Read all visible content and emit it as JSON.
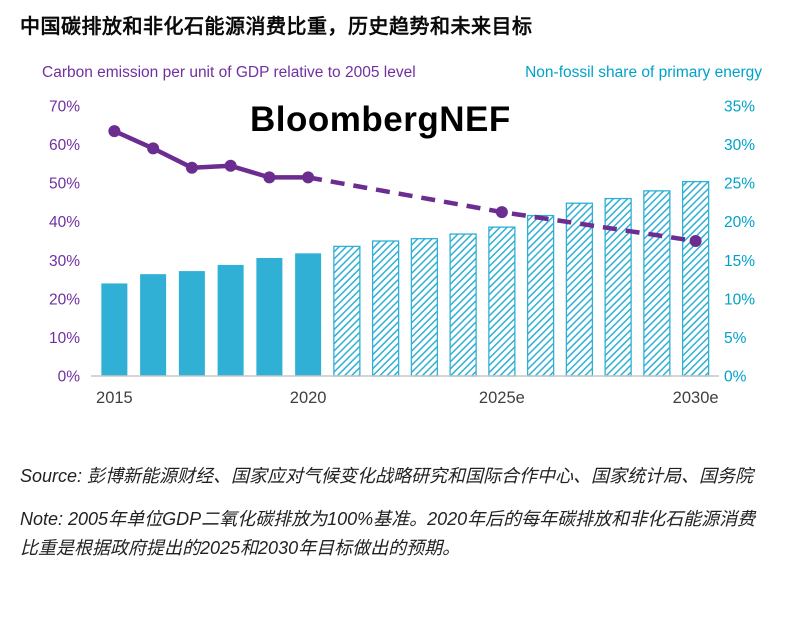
{
  "page": {
    "title": "中国碳排放和非化石能源消费比重，历史趋势和未来目标",
    "watermark": "BloombergNEF",
    "source": "Source: 彭博新能源财经、国家应对气候变化战略研究和国际合作中心、国家统计局、国务院",
    "note": "Note: 2005年单位GDP二氧化碳排放为100%基准。2020年后的每年碳排放和非化石能源消费比重是根据政府提出的2025和2030年目标做出的预期。"
  },
  "chart_data": {
    "type": "bar+line",
    "left_axis": {
      "label": "Carbon emission per unit of GDP relative to 2005 level",
      "min": 0,
      "max": 70,
      "tick_labels": [
        "0%",
        "10%",
        "20%",
        "30%",
        "40%",
        "50%",
        "60%",
        "70%"
      ],
      "color": "#7030a0"
    },
    "right_axis": {
      "label": "Non-fossil share of primary energy",
      "min": 0,
      "max": 35,
      "tick_labels": [
        "0%",
        "5%",
        "10%",
        "15%",
        "20%",
        "25%",
        "30%",
        "35%"
      ],
      "color": "#00a2c9"
    },
    "x_axis": {
      "tick_labels": [
        "2015",
        "2020",
        "2025e",
        "2030e"
      ],
      "tick_years": [
        2015,
        2020,
        2025,
        2030
      ],
      "color": "#404040"
    },
    "bars": {
      "name": "Non-fossil share of primary energy (%, right axis)",
      "color": "#2fb0d4",
      "years": [
        2015,
        2016,
        2017,
        2018,
        2019,
        2020,
        2021,
        2022,
        2023,
        2024,
        2025,
        2026,
        2027,
        2028,
        2029,
        2030
      ],
      "values": [
        12.0,
        13.2,
        13.6,
        14.4,
        15.3,
        15.9,
        16.8,
        17.5,
        17.8,
        18.4,
        19.3,
        20.8,
        22.4,
        23.0,
        24.0,
        25.2
      ],
      "forecast_start_year": 2021
    },
    "line": {
      "name": "Carbon emission per unit of GDP relative to 2005 level (%, left axis)",
      "color": "#6b2d90",
      "solid": {
        "years": [
          2015,
          2016,
          2017,
          2018,
          2019,
          2020
        ],
        "values": [
          63.5,
          59.0,
          54.0,
          54.5,
          51.5,
          51.5
        ]
      },
      "dashed": {
        "years": [
          2020,
          2025,
          2030
        ],
        "values": [
          51.5,
          42.5,
          35.0
        ]
      },
      "dashed_marker_years": [
        2025,
        2030
      ]
    },
    "grid": "off",
    "legend": "axis-title colors serve as legend"
  }
}
